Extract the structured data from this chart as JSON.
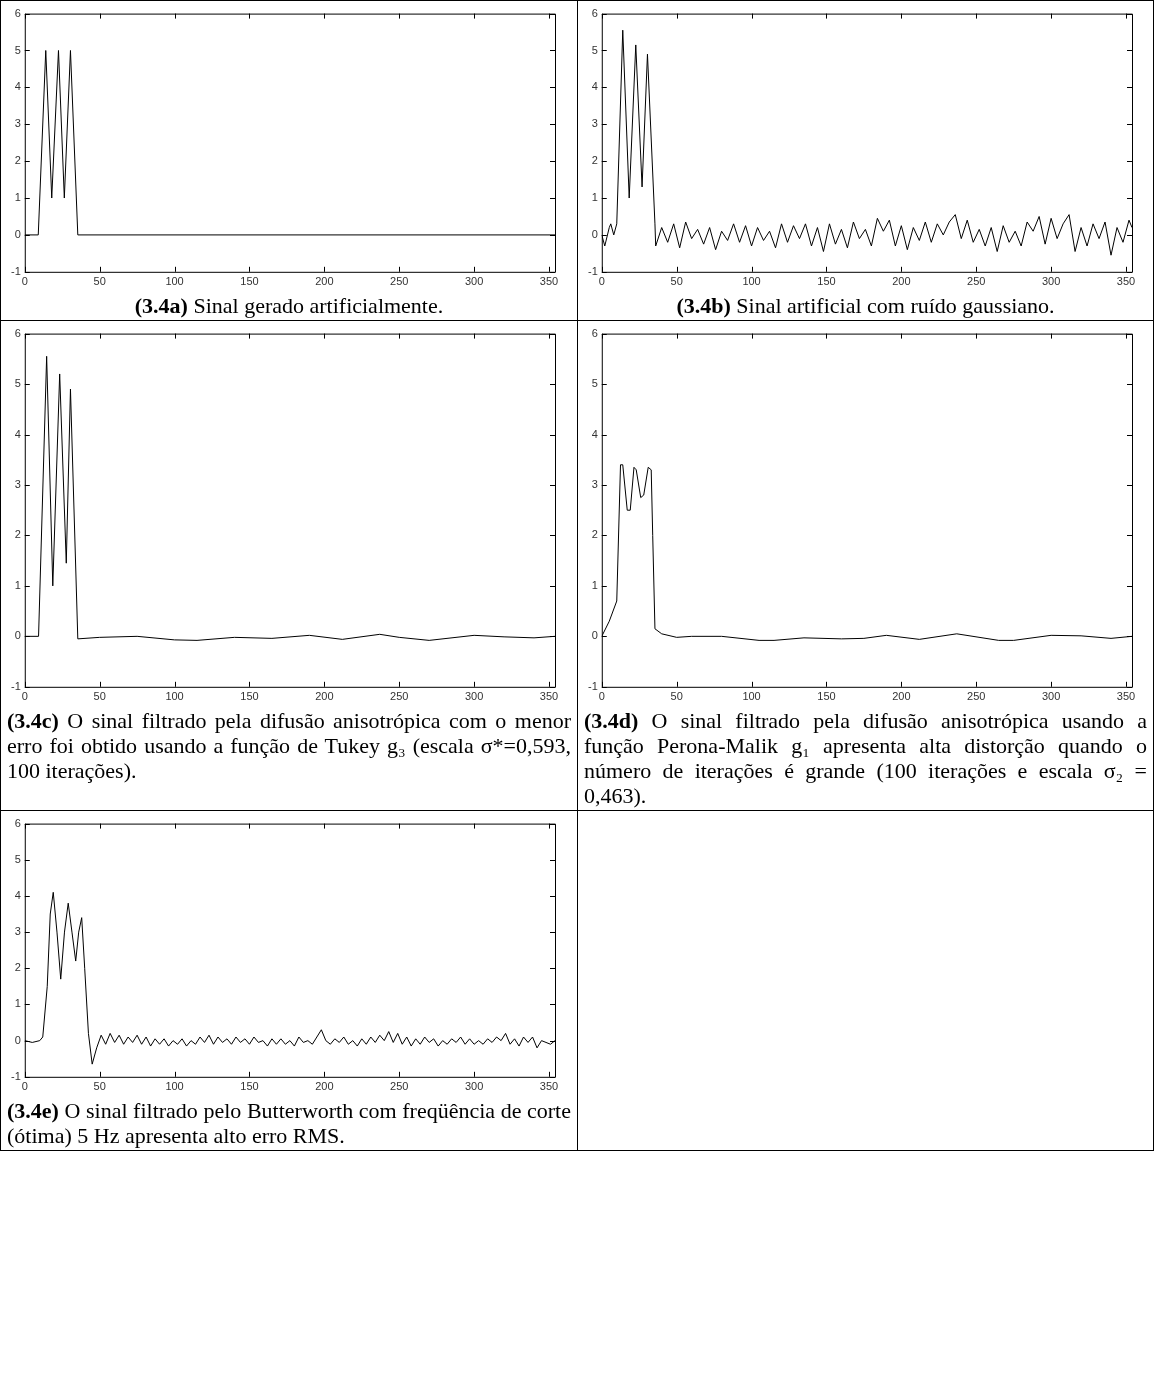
{
  "chart_data": [
    {
      "type": "line",
      "title": "(3.4a) Sinal gerado artificialmente.",
      "color": "#000000",
      "marker": "none",
      "xlim": [
        0,
        354
      ],
      "ylim": [
        -1,
        6
      ],
      "xticks": [
        0,
        50,
        100,
        150,
        200,
        250,
        300,
        350
      ],
      "yticks": [
        -1,
        0,
        1,
        2,
        3,
        4,
        5,
        6
      ],
      "x": [
        0,
        9,
        14,
        18,
        22.5,
        26.4,
        30.5,
        35.4,
        354
      ],
      "values": [
        0,
        0,
        5,
        1,
        5,
        1,
        5,
        0,
        0
      ]
    },
    {
      "type": "line",
      "title": "(3.4b) Sinal artificial com ruído gaussiano.",
      "color": "#000000",
      "marker": "none",
      "xlim": [
        0,
        354
      ],
      "ylim": [
        -1,
        6
      ],
      "xticks": [
        0,
        50,
        100,
        150,
        200,
        250,
        300,
        350
      ],
      "yticks": [
        -1,
        0,
        1,
        2,
        3,
        4,
        5,
        6
      ],
      "x": [
        0,
        2,
        5,
        6,
        8,
        10,
        14,
        18.3,
        22.7,
        26.9,
        30.5,
        35.5,
        36,
        40,
        44,
        48,
        52,
        56,
        60,
        64,
        68,
        72,
        76,
        80,
        84,
        88,
        92,
        96,
        100,
        104,
        108,
        112,
        116,
        120,
        124,
        128,
        132,
        136,
        140,
        144,
        148,
        152,
        156,
        160,
        164,
        168,
        172,
        176,
        180,
        184,
        188,
        192,
        196,
        200,
        204,
        208,
        212,
        216,
        220,
        224,
        228,
        232,
        236,
        240,
        244,
        248,
        252,
        256,
        260,
        264,
        268,
        272,
        276,
        280,
        284,
        288,
        292,
        296,
        300,
        304,
        308,
        312,
        316,
        320,
        324,
        328,
        332,
        336,
        340,
        344,
        348,
        352,
        354
      ],
      "values": [
        0,
        -0.3,
        0.2,
        0.3,
        0,
        0.3,
        5.55,
        1,
        5.15,
        1.3,
        4.9,
        0.3,
        -0.3,
        0.2,
        -0.2,
        0.3,
        -0.35,
        0.35,
        -0.1,
        0.15,
        -0.25,
        0.2,
        -0.4,
        0.1,
        -0.15,
        0.3,
        -0.2,
        0.25,
        -0.3,
        0.2,
        -0.15,
        0.1,
        -0.35,
        0.3,
        -0.2,
        0.25,
        -0.1,
        0.3,
        -0.3,
        0.2,
        -0.45,
        0.3,
        -0.25,
        0.15,
        -0.35,
        0.35,
        -0.1,
        0.15,
        -0.3,
        0.45,
        0.1,
        0.4,
        -0.3,
        0.25,
        -0.4,
        0.2,
        -0.15,
        0.35,
        -0.2,
        0.3,
        0,
        0.35,
        0.55,
        -0.1,
        0.4,
        -0.2,
        0.15,
        -0.3,
        0.2,
        -0.45,
        0.25,
        -0.2,
        0.1,
        -0.3,
        0.35,
        0.1,
        0.5,
        -0.25,
        0.45,
        -0.1,
        0.3,
        0.55,
        -0.45,
        0.2,
        -0.3,
        0.3,
        -0.1,
        0.35,
        -0.55,
        0.2,
        -0.2,
        0.4,
        0.2
      ]
    },
    {
      "type": "line",
      "title": "(3.4c) O sinal filtrado pela difusão anisotrópica com o menor erro foi obtido usando a função de Tukey g₃ (escala σ*=0,593, 100 iterações).",
      "color": "#000000",
      "marker": "none",
      "xlim": [
        0,
        354
      ],
      "ylim": [
        -1,
        6
      ],
      "xticks": [
        0,
        50,
        100,
        150,
        200,
        250,
        300,
        350
      ],
      "yticks": [
        -1,
        0,
        1,
        2,
        3,
        4,
        5,
        6
      ],
      "x": [
        0,
        9.2,
        14.6,
        18.7,
        23.3,
        27.7,
        30.5,
        35.4,
        50,
        75,
        100,
        115,
        140,
        165,
        190,
        212,
        237,
        250,
        270,
        300,
        320,
        340,
        354
      ],
      "values": [
        0,
        0,
        5.55,
        1,
        5.2,
        1.45,
        4.9,
        -0.05,
        -0.02,
        0,
        -0.07,
        -0.08,
        -0.02,
        -0.04,
        0.02,
        -0.06,
        0.04,
        -0.02,
        -0.08,
        0.02,
        -0.01,
        -0.03,
        0
      ]
    },
    {
      "type": "line",
      "title": "(3.4d) O sinal filtrado pela difusão anisotrópica usando a função Perona-Malik g₁ apresenta alta distorção quando o número de iterações é grande (100 iterações e escala σ₂ = 0,463).",
      "color": "#000000",
      "marker": "none",
      "xlim": [
        0,
        354
      ],
      "ylim": [
        -1,
        6
      ],
      "xticks": [
        0,
        50,
        100,
        150,
        200,
        250,
        300,
        350
      ],
      "yticks": [
        -1,
        0,
        1,
        2,
        3,
        4,
        5,
        6
      ],
      "x": [
        0,
        5,
        10,
        12.5,
        14,
        17,
        19,
        21.5,
        23,
        26,
        28,
        31,
        33,
        34,
        35.5,
        40,
        50,
        60,
        80,
        105,
        115,
        135,
        160,
        175,
        190,
        212,
        237,
        265,
        275,
        300,
        320,
        340,
        354
      ],
      "values": [
        0,
        0.3,
        0.7,
        3.4,
        3.4,
        2.5,
        2.5,
        3.35,
        3.3,
        2.75,
        2.8,
        3.35,
        3.3,
        2,
        0.15,
        0.05,
        -0.02,
        0,
        0,
        -0.08,
        -0.08,
        -0.03,
        -0.05,
        -0.04,
        0.02,
        -0.06,
        0.05,
        -0.08,
        -0.08,
        0.02,
        0.01,
        -0.04,
        0
      ]
    },
    {
      "type": "line",
      "title": "(3.4e) O sinal filtrado pelo Butterworth com freqüência de corte (ótima) 5 Hz apresenta alto erro RMS.",
      "color": "#000000",
      "marker": "none",
      "xlim": [
        0,
        354
      ],
      "ylim": [
        -1,
        6
      ],
      "xticks": [
        0,
        50,
        100,
        150,
        200,
        250,
        300,
        350
      ],
      "yticks": [
        -1,
        0,
        1,
        2,
        3,
        4,
        5,
        6
      ],
      "x": [
        0,
        5,
        10,
        12,
        15,
        17,
        19,
        21.5,
        24,
        26.5,
        29,
        31.5,
        34,
        36,
        38,
        40,
        42.5,
        45,
        48,
        51,
        54,
        57,
        60,
        63,
        66,
        69,
        72,
        75,
        78,
        81,
        84,
        87,
        90,
        93,
        96,
        99,
        102,
        105,
        108,
        111,
        114,
        117,
        120,
        123,
        126,
        129,
        132,
        135,
        138,
        141,
        144,
        147,
        150,
        153,
        156,
        159,
        162,
        165,
        168,
        171,
        174,
        177,
        180,
        183,
        186,
        189,
        192,
        195,
        198,
        201,
        204,
        207,
        210,
        213,
        216,
        219,
        222,
        225,
        228,
        231,
        234,
        237,
        240,
        243,
        246,
        249,
        252,
        255,
        258,
        261,
        264,
        267,
        270,
        273,
        276,
        279,
        282,
        285,
        288,
        291,
        294,
        297,
        300,
        303,
        306,
        309,
        312,
        315,
        318,
        321,
        324,
        327,
        330,
        333,
        336,
        339,
        342,
        345,
        348,
        351,
        354
      ],
      "values": [
        0,
        -0.05,
        0,
        0.1,
        1.5,
        3.5,
        4.1,
        3,
        1.7,
        3,
        3.8,
        3,
        2.2,
        3,
        3.4,
        2,
        0.2,
        -0.65,
        -0.2,
        0.15,
        -0.1,
        0.2,
        -0.05,
        0.15,
        -0.1,
        0.1,
        -0.05,
        0.15,
        -0.1,
        0.1,
        -0.15,
        0.05,
        -0.1,
        0.05,
        -0.15,
        0,
        -0.1,
        0.05,
        -0.15,
        0,
        -0.1,
        0.1,
        -0.05,
        0.15,
        -0.1,
        0.1,
        -0.05,
        0.05,
        -0.1,
        0.1,
        -0.05,
        0.05,
        -0.1,
        0.1,
        -0.05,
        0,
        -0.15,
        0.05,
        -0.1,
        0.05,
        -0.1,
        0,
        -0.15,
        0.1,
        -0.05,
        0,
        -0.1,
        0.1,
        0.3,
        0,
        -0.1,
        0.05,
        -0.05,
        0.1,
        -0.1,
        0,
        -0.15,
        0.05,
        -0.1,
        0.1,
        -0.05,
        0.15,
        0,
        0.25,
        -0.05,
        0.2,
        -0.1,
        0.1,
        -0.15,
        0.05,
        -0.1,
        0.1,
        -0.05,
        0.05,
        -0.15,
        0,
        -0.1,
        0.05,
        -0.05,
        0.1,
        -0.1,
        0.05,
        -0.1,
        0,
        -0.1,
        0.05,
        -0.05,
        0.1,
        0,
        0.2,
        -0.1,
        0.05,
        -0.15,
        0.1,
        -0.05,
        0.1,
        -0.2,
        0,
        -0.05,
        -0.1,
        0
      ]
    }
  ]
}
